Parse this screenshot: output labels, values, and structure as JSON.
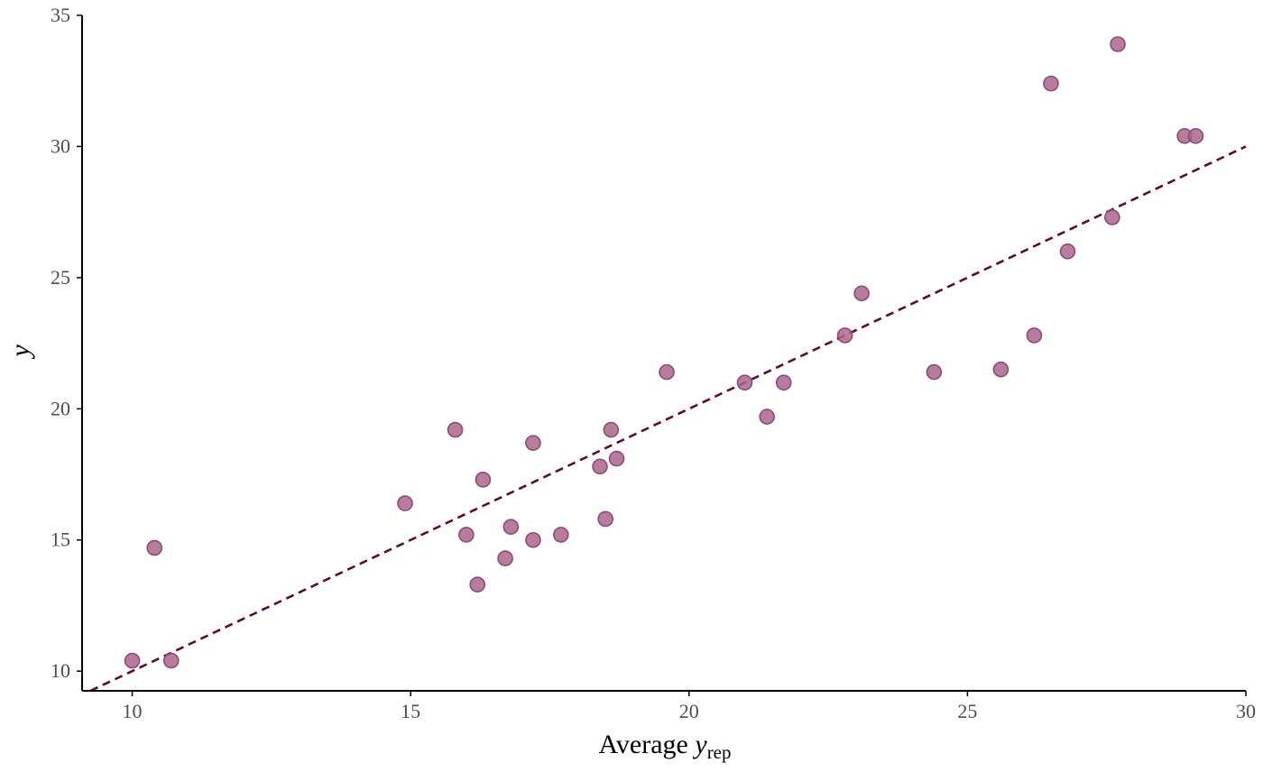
{
  "chart_data": {
    "type": "scatter",
    "title": "",
    "xlabel": {
      "main": "Average ",
      "var": "y",
      "sub": "rep"
    },
    "ylabel": "y",
    "xlim": [
      9.1,
      30.0
    ],
    "ylim": [
      9.25,
      35.0
    ],
    "xticks": [
      10,
      15,
      20,
      25,
      30
    ],
    "yticks": [
      10,
      15,
      20,
      25,
      30,
      35
    ],
    "grid": false,
    "reference_line": {
      "slope": 1,
      "intercept": 0,
      "style": "dashed",
      "color": "#5c0a3a"
    },
    "point_color": "#a9668d",
    "point_stroke": "#8f4a74",
    "points": [
      {
        "x": 10.0,
        "y": 10.4
      },
      {
        "x": 10.4,
        "y": 14.7
      },
      {
        "x": 10.7,
        "y": 10.4
      },
      {
        "x": 14.9,
        "y": 16.4
      },
      {
        "x": 15.8,
        "y": 19.2
      },
      {
        "x": 16.0,
        "y": 15.2
      },
      {
        "x": 16.2,
        "y": 13.3
      },
      {
        "x": 16.3,
        "y": 17.3
      },
      {
        "x": 16.7,
        "y": 14.3
      },
      {
        "x": 16.8,
        "y": 15.5
      },
      {
        "x": 17.2,
        "y": 15.0
      },
      {
        "x": 17.2,
        "y": 18.7
      },
      {
        "x": 17.7,
        "y": 15.2
      },
      {
        "x": 18.4,
        "y": 17.8
      },
      {
        "x": 18.5,
        "y": 15.8
      },
      {
        "x": 18.6,
        "y": 19.2
      },
      {
        "x": 18.7,
        "y": 18.1
      },
      {
        "x": 19.6,
        "y": 21.4
      },
      {
        "x": 21.0,
        "y": 21.0
      },
      {
        "x": 21.4,
        "y": 19.7
      },
      {
        "x": 21.7,
        "y": 21.0
      },
      {
        "x": 22.8,
        "y": 22.8
      },
      {
        "x": 23.1,
        "y": 24.4
      },
      {
        "x": 24.4,
        "y": 21.4
      },
      {
        "x": 25.6,
        "y": 21.5
      },
      {
        "x": 26.2,
        "y": 22.8
      },
      {
        "x": 26.5,
        "y": 32.4
      },
      {
        "x": 26.8,
        "y": 26.0
      },
      {
        "x": 27.6,
        "y": 27.3
      },
      {
        "x": 27.7,
        "y": 33.9
      },
      {
        "x": 28.9,
        "y": 30.4
      },
      {
        "x": 29.1,
        "y": 30.4
      }
    ]
  }
}
